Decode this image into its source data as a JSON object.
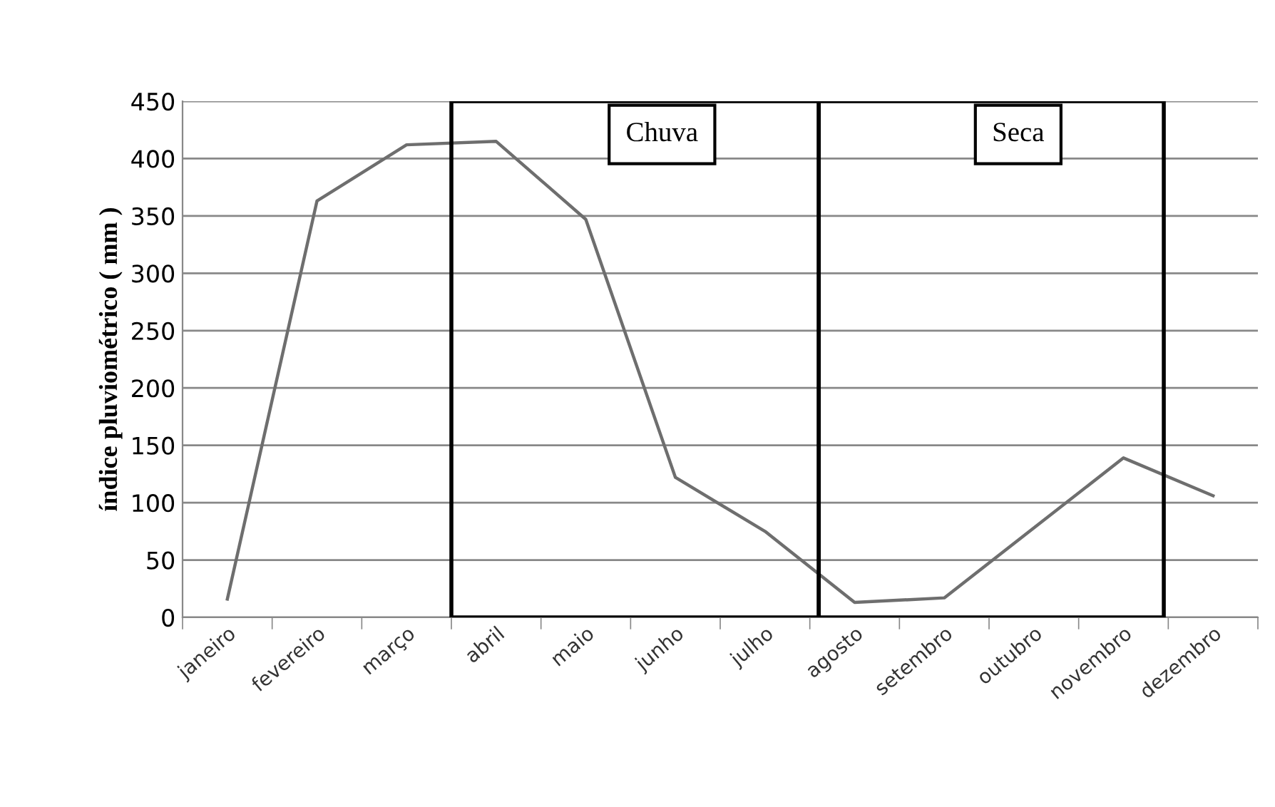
{
  "chart_data": {
    "type": "line",
    "ylabel": "índice pluviométrico ( mm )",
    "categories": [
      "janeiro",
      "fevereiro",
      "março",
      "abril",
      "maio",
      "junho",
      "julho",
      "agosto",
      "setembro",
      "outubro",
      "novembro",
      "dezembro"
    ],
    "series": [
      {
        "color": "#6e6e6e",
        "values": [
          16,
          363,
          412,
          415,
          347,
          122,
          75,
          13,
          17,
          78,
          139,
          106
        ]
      }
    ],
    "ylim": [
      0,
      450
    ],
    "yticks": [
      0,
      50,
      100,
      150,
      200,
      250,
      300,
      350,
      400,
      450
    ],
    "grid": "y",
    "marker": "none",
    "line_style": "solid",
    "annotations": [
      "Chuva",
      "Seca"
    ]
  }
}
